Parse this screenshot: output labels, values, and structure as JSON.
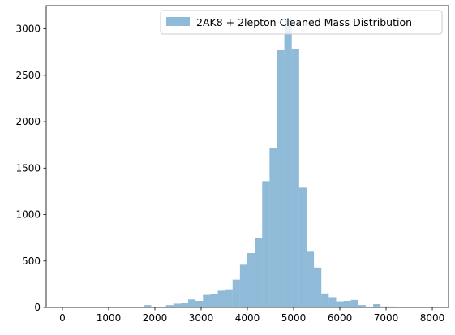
{
  "chart_data": {
    "type": "bar",
    "subtype": "histogram",
    "legend": {
      "entries": [
        "2AK8 + 2lepton Cleaned Mass Distribution"
      ],
      "placement": "top-right"
    },
    "colors": {
      "bar": "#1f77b4",
      "bar_alpha": 0.5
    },
    "bin_width": 160,
    "bins_start": 0,
    "bins_end": 8000,
    "values": [
      2,
      0,
      0,
      1,
      0,
      0,
      0,
      0,
      1,
      0,
      0,
      25,
      0,
      0,
      25,
      40,
      45,
      85,
      70,
      135,
      145,
      180,
      195,
      300,
      460,
      585,
      750,
      1360,
      1720,
      2770,
      3100,
      2780,
      1290,
      600,
      430,
      150,
      110,
      65,
      70,
      80,
      25,
      0,
      35,
      10,
      10,
      0,
      0,
      5,
      5,
      0
    ],
    "xlim": [
      -350,
      8350
    ],
    "ylim": [
      0,
      3250
    ],
    "xticks": [
      "0",
      "1000",
      "2000",
      "3000",
      "4000",
      "5000",
      "6000",
      "7000",
      "8000"
    ],
    "yticks": [
      "0",
      "500",
      "1000",
      "1500",
      "2000",
      "2500",
      "3000"
    ],
    "grid": false
  }
}
